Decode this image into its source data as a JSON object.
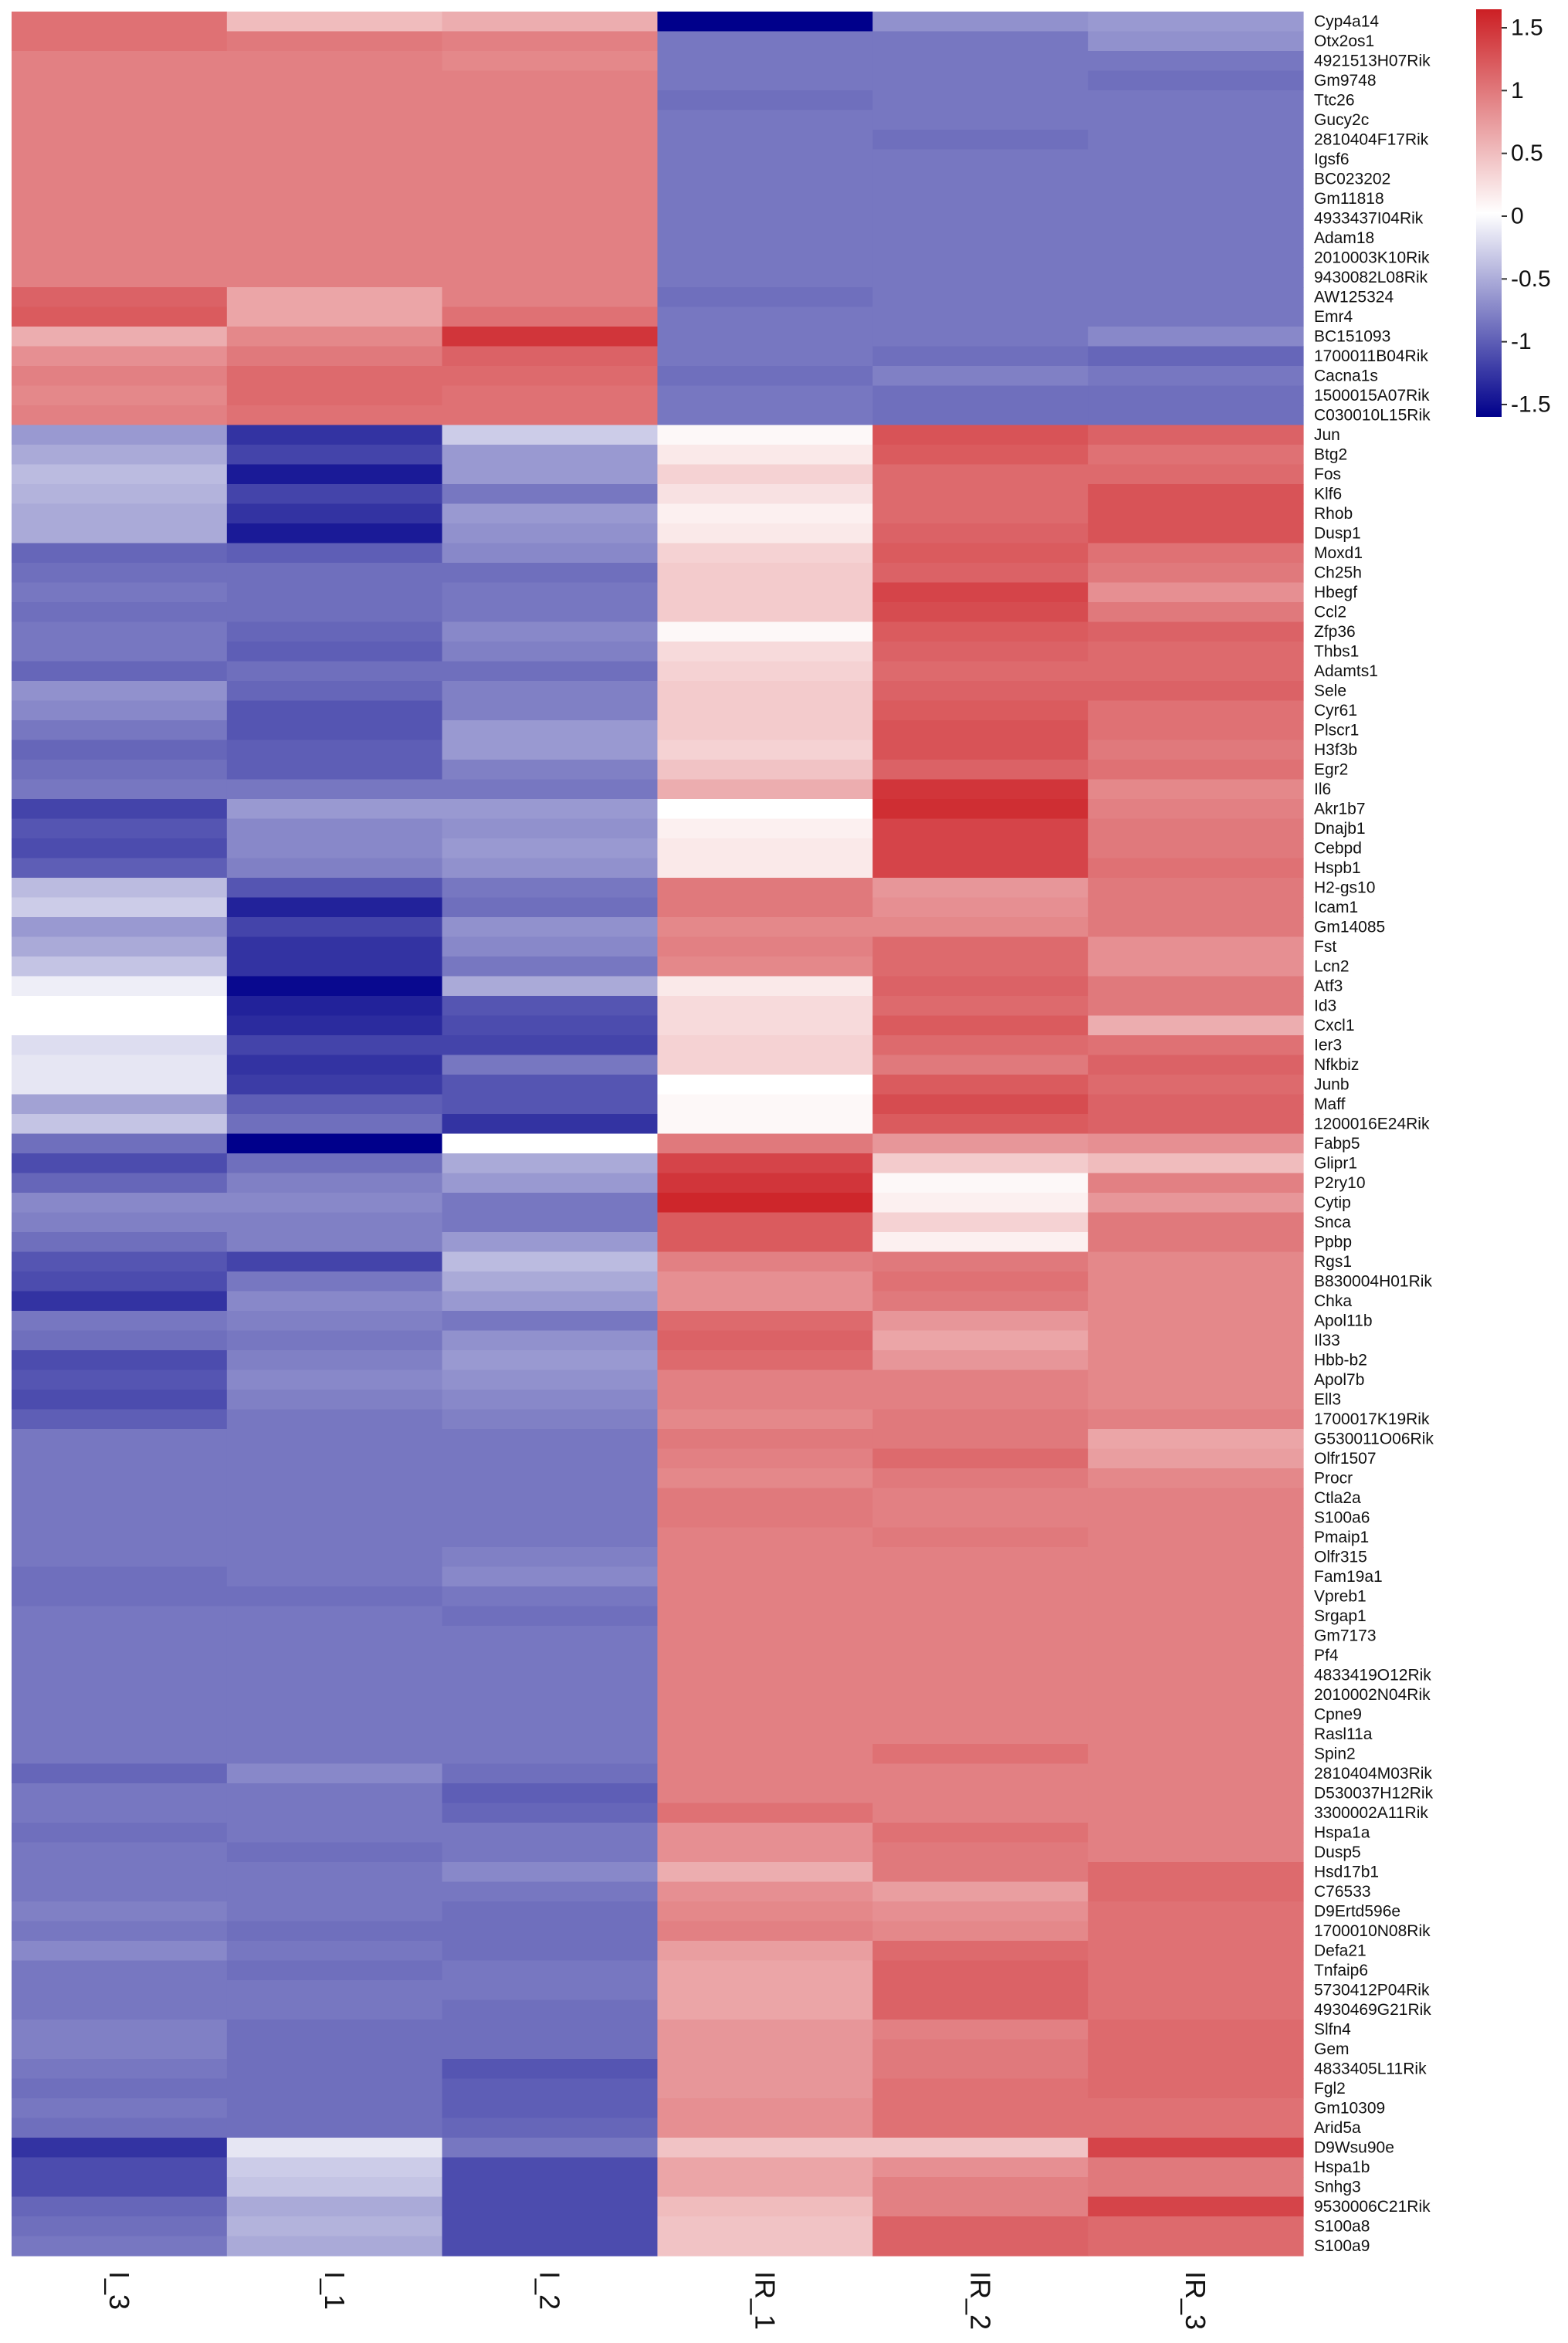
{
  "chart_data": {
    "type": "heatmap",
    "title": "",
    "xlabel": "",
    "ylabel": "",
    "columns": [
      "I_3",
      "I_1",
      "I_2",
      "IR_1",
      "IR_2",
      "IR_3"
    ],
    "rows": [
      {
        "gene": "Cyp4a14",
        "values": [
          0.95,
          0.45,
          0.55,
          -1.5,
          -0.65,
          -0.6
        ]
      },
      {
        "gene": "Otx2os1",
        "values": [
          0.95,
          0.9,
          0.85,
          -0.8,
          -0.8,
          -0.65
        ]
      },
      {
        "gene": "4921513H07Rik",
        "values": [
          0.85,
          0.85,
          0.8,
          -0.8,
          -0.8,
          -0.8
        ]
      },
      {
        "gene": "Gm9748",
        "values": [
          0.85,
          0.85,
          0.85,
          -0.8,
          -0.8,
          -0.85
        ]
      },
      {
        "gene": "Ttc26",
        "values": [
          0.85,
          0.85,
          0.85,
          -0.85,
          -0.8,
          -0.8
        ]
      },
      {
        "gene": "Gucy2c",
        "values": [
          0.85,
          0.85,
          0.85,
          -0.8,
          -0.8,
          -0.8
        ]
      },
      {
        "gene": "2810404F17Rik",
        "values": [
          0.85,
          0.85,
          0.85,
          -0.8,
          -0.85,
          -0.8
        ]
      },
      {
        "gene": "Igsf6",
        "values": [
          0.85,
          0.85,
          0.85,
          -0.8,
          -0.8,
          -0.8
        ]
      },
      {
        "gene": "BC023202",
        "values": [
          0.85,
          0.85,
          0.85,
          -0.8,
          -0.8,
          -0.8
        ]
      },
      {
        "gene": "Gm11818",
        "values": [
          0.85,
          0.85,
          0.85,
          -0.8,
          -0.8,
          -0.8
        ]
      },
      {
        "gene": "4933437I04Rik",
        "values": [
          0.85,
          0.85,
          0.85,
          -0.8,
          -0.8,
          -0.8
        ]
      },
      {
        "gene": "Adam18",
        "values": [
          0.85,
          0.85,
          0.85,
          -0.8,
          -0.8,
          -0.8
        ]
      },
      {
        "gene": "2010003K10Rik",
        "values": [
          0.85,
          0.85,
          0.85,
          -0.8,
          -0.8,
          -0.8
        ]
      },
      {
        "gene": "9430082L08Rik",
        "values": [
          0.85,
          0.85,
          0.85,
          -0.8,
          -0.8,
          -0.8
        ]
      },
      {
        "gene": "AW125324",
        "values": [
          1.05,
          0.6,
          0.85,
          -0.85,
          -0.8,
          -0.8
        ]
      },
      {
        "gene": "Emr4",
        "values": [
          1.1,
          0.6,
          0.95,
          -0.8,
          -0.8,
          -0.8
        ]
      },
      {
        "gene": "BC151093",
        "values": [
          0.55,
          0.8,
          1.35,
          -0.8,
          -0.8,
          -0.7
        ]
      },
      {
        "gene": "1700011B04Rik",
        "values": [
          0.75,
          0.9,
          1.05,
          -0.8,
          -0.85,
          -0.9
        ]
      },
      {
        "gene": "Cacna1s",
        "values": [
          0.85,
          1.0,
          1.0,
          -0.85,
          -0.75,
          -0.8
        ]
      },
      {
        "gene": "1500015A07Rik",
        "values": [
          0.8,
          1.0,
          0.95,
          -0.8,
          -0.85,
          -0.85
        ]
      },
      {
        "gene": "C030010L15Rik",
        "values": [
          0.85,
          0.95,
          0.95,
          -0.8,
          -0.85,
          -0.85
        ]
      },
      {
        "gene": "Jun",
        "values": [
          -0.6,
          -1.2,
          -0.3,
          0.05,
          1.15,
          1.05
        ]
      },
      {
        "gene": "Btg2",
        "values": [
          -0.5,
          -1.1,
          -0.6,
          0.15,
          1.1,
          0.95
        ]
      },
      {
        "gene": "Fos",
        "values": [
          -0.4,
          -1.35,
          -0.6,
          0.3,
          1.0,
          1.0
        ]
      },
      {
        "gene": "Klf6",
        "values": [
          -0.45,
          -1.1,
          -0.8,
          0.2,
          1.0,
          1.15
        ]
      },
      {
        "gene": "Rhob",
        "values": [
          -0.5,
          -1.2,
          -0.6,
          0.1,
          1.0,
          1.15
        ]
      },
      {
        "gene": "Dusp1",
        "values": [
          -0.5,
          -1.35,
          -0.65,
          0.15,
          1.05,
          1.15
        ]
      },
      {
        "gene": "Moxd1",
        "values": [
          -0.9,
          -0.95,
          -0.7,
          0.3,
          1.1,
          0.95
        ]
      },
      {
        "gene": "Ch25h",
        "values": [
          -0.85,
          -0.85,
          -0.85,
          0.35,
          1.05,
          0.9
        ]
      },
      {
        "gene": "Hbegf",
        "values": [
          -0.8,
          -0.85,
          -0.8,
          0.35,
          1.25,
          0.75
        ]
      },
      {
        "gene": "Ccl2",
        "values": [
          -0.85,
          -0.85,
          -0.8,
          0.35,
          1.2,
          0.9
        ]
      },
      {
        "gene": "Zfp36",
        "values": [
          -0.8,
          -0.9,
          -0.7,
          0.05,
          1.1,
          1.05
        ]
      },
      {
        "gene": "Thbs1",
        "values": [
          -0.8,
          -0.95,
          -0.75,
          0.25,
          1.05,
          1.0
        ]
      },
      {
        "gene": "Adamts1",
        "values": [
          -0.9,
          -0.85,
          -0.85,
          0.3,
          1.0,
          1.0
        ]
      },
      {
        "gene": "Sele",
        "values": [
          -0.65,
          -0.9,
          -0.75,
          0.35,
          1.05,
          1.05
        ]
      },
      {
        "gene": "Cyr61",
        "values": [
          -0.7,
          -1.0,
          -0.75,
          0.35,
          1.1,
          0.95
        ]
      },
      {
        "gene": "Plscr1",
        "values": [
          -0.8,
          -1.0,
          -0.6,
          0.35,
          1.15,
          0.95
        ]
      },
      {
        "gene": "H3f3b",
        "values": [
          -0.9,
          -0.95,
          -0.6,
          0.3,
          1.15,
          0.9
        ]
      },
      {
        "gene": "Egr2",
        "values": [
          -0.85,
          -0.95,
          -0.75,
          0.4,
          1.05,
          0.95
        ]
      },
      {
        "gene": "Il6",
        "values": [
          -0.8,
          -0.8,
          -0.8,
          0.55,
          1.35,
          0.8
        ]
      },
      {
        "gene": "Akr1b7",
        "values": [
          -1.1,
          -0.6,
          -0.6,
          0.0,
          1.4,
          0.85
        ]
      },
      {
        "gene": "Dnajb1",
        "values": [
          -1.0,
          -0.7,
          -0.65,
          0.1,
          1.25,
          0.9
        ]
      },
      {
        "gene": "Cebpd",
        "values": [
          -1.05,
          -0.7,
          -0.6,
          0.15,
          1.25,
          0.9
        ]
      },
      {
        "gene": "Hspb1",
        "values": [
          -0.95,
          -0.75,
          -0.65,
          0.15,
          1.25,
          0.95
        ]
      },
      {
        "gene": "H2-gs10",
        "values": [
          -0.4,
          -1.0,
          -0.8,
          0.9,
          0.7,
          0.9
        ]
      },
      {
        "gene": "Icam1",
        "values": [
          -0.3,
          -1.3,
          -0.85,
          0.9,
          0.75,
          0.9
        ]
      },
      {
        "gene": "Gm14085",
        "values": [
          -0.6,
          -1.1,
          -0.65,
          0.8,
          0.8,
          0.9
        ]
      },
      {
        "gene": "Fst",
        "values": [
          -0.5,
          -1.2,
          -0.7,
          0.85,
          1.0,
          0.75
        ]
      },
      {
        "gene": "Lcn2",
        "values": [
          -0.35,
          -1.2,
          -0.8,
          0.8,
          1.0,
          0.75
        ]
      },
      {
        "gene": "Atf3",
        "values": [
          -0.1,
          -1.45,
          -0.5,
          0.15,
          1.05,
          0.9
        ]
      },
      {
        "gene": "Id3",
        "values": [
          0.0,
          -1.3,
          -1.0,
          0.25,
          1.0,
          0.9
        ]
      },
      {
        "gene": "Cxcl1",
        "values": [
          0.0,
          -1.25,
          -1.05,
          0.25,
          1.1,
          0.55
        ]
      },
      {
        "gene": "Ier3",
        "values": [
          -0.2,
          -1.1,
          -1.1,
          0.3,
          1.0,
          0.95
        ]
      },
      {
        "gene": "Nfkbiz",
        "values": [
          -0.15,
          -1.2,
          -0.8,
          0.3,
          0.9,
          1.05
        ]
      },
      {
        "gene": "Junb",
        "values": [
          -0.15,
          -1.15,
          -1.0,
          0.0,
          1.1,
          1.0
        ]
      },
      {
        "gene": "Maff",
        "values": [
          -0.55,
          -0.95,
          -1.0,
          0.05,
          1.2,
          1.05
        ]
      },
      {
        "gene": "1200016E24Rik",
        "values": [
          -0.35,
          -0.85,
          -1.2,
          0.05,
          1.1,
          1.05
        ]
      },
      {
        "gene": "Fabp5",
        "values": [
          -0.85,
          -1.5,
          0.0,
          0.9,
          0.7,
          0.75
        ]
      },
      {
        "gene": "Glipr1",
        "values": [
          -1.05,
          -0.85,
          -0.5,
          1.25,
          0.35,
          0.45
        ]
      },
      {
        "gene": "P2ry10",
        "values": [
          -0.9,
          -0.75,
          -0.6,
          1.35,
          0.05,
          0.85
        ]
      },
      {
        "gene": "Cytip",
        "values": [
          -0.7,
          -0.7,
          -0.8,
          1.45,
          0.1,
          0.7
        ]
      },
      {
        "gene": "Snca",
        "values": [
          -0.75,
          -0.75,
          -0.8,
          1.1,
          0.3,
          0.9
        ]
      },
      {
        "gene": "Ppbp",
        "values": [
          -0.85,
          -0.75,
          -0.6,
          1.1,
          0.1,
          0.9
        ]
      },
      {
        "gene": "Rgs1",
        "values": [
          -1.0,
          -1.1,
          -0.4,
          0.85,
          0.9,
          0.8
        ]
      },
      {
        "gene": "B830004H01Rik",
        "values": [
          -1.05,
          -0.8,
          -0.5,
          0.75,
          0.95,
          0.8
        ]
      },
      {
        "gene": "Chka",
        "values": [
          -1.2,
          -0.7,
          -0.6,
          0.75,
          0.9,
          0.8
        ]
      },
      {
        "gene": "Apol11b",
        "values": [
          -0.8,
          -0.75,
          -0.8,
          1.0,
          0.7,
          0.8
        ]
      },
      {
        "gene": "Il33",
        "values": [
          -0.85,
          -0.8,
          -0.65,
          1.05,
          0.6,
          0.8
        ]
      },
      {
        "gene": "Hbb-b2",
        "values": [
          -1.05,
          -0.75,
          -0.6,
          1.0,
          0.7,
          0.8
        ]
      },
      {
        "gene": "Apol7b",
        "values": [
          -1.0,
          -0.7,
          -0.65,
          0.85,
          0.85,
          0.8
        ]
      },
      {
        "gene": "Ell3",
        "values": [
          -1.05,
          -0.75,
          -0.7,
          0.85,
          0.85,
          0.8
        ]
      },
      {
        "gene": "1700017K19Rik",
        "values": [
          -0.95,
          -0.8,
          -0.75,
          0.8,
          0.9,
          0.85
        ]
      },
      {
        "gene": "G530011O06Rik",
        "values": [
          -0.8,
          -0.8,
          -0.8,
          0.9,
          0.9,
          0.6
        ]
      },
      {
        "gene": "Olfr1507",
        "values": [
          -0.8,
          -0.8,
          -0.8,
          0.85,
          1.0,
          0.65
        ]
      },
      {
        "gene": "Procr",
        "values": [
          -0.8,
          -0.8,
          -0.8,
          0.8,
          0.9,
          0.8
        ]
      },
      {
        "gene": "Ctla2a",
        "values": [
          -0.8,
          -0.8,
          -0.8,
          0.9,
          0.85,
          0.85
        ]
      },
      {
        "gene": "S100a6",
        "values": [
          -0.8,
          -0.8,
          -0.8,
          0.9,
          0.85,
          0.85
        ]
      },
      {
        "gene": "Pmaip1",
        "values": [
          -0.8,
          -0.8,
          -0.8,
          0.85,
          0.9,
          0.85
        ]
      },
      {
        "gene": "Olfr315",
        "values": [
          -0.8,
          -0.8,
          -0.75,
          0.85,
          0.85,
          0.85
        ]
      },
      {
        "gene": "Fam19a1",
        "values": [
          -0.85,
          -0.8,
          -0.7,
          0.85,
          0.85,
          0.85
        ]
      },
      {
        "gene": "Vpreb1",
        "values": [
          -0.85,
          -0.85,
          -0.8,
          0.85,
          0.85,
          0.85
        ]
      },
      {
        "gene": "Srgap1",
        "values": [
          -0.8,
          -0.8,
          -0.85,
          0.85,
          0.85,
          0.85
        ]
      },
      {
        "gene": "Gm7173",
        "values": [
          -0.8,
          -0.8,
          -0.8,
          0.85,
          0.85,
          0.85
        ]
      },
      {
        "gene": "Pf4",
        "values": [
          -0.8,
          -0.8,
          -0.8,
          0.85,
          0.85,
          0.85
        ]
      },
      {
        "gene": "4833419O12Rik",
        "values": [
          -0.8,
          -0.8,
          -0.8,
          0.85,
          0.85,
          0.85
        ]
      },
      {
        "gene": "2010002N04Rik",
        "values": [
          -0.8,
          -0.8,
          -0.8,
          0.85,
          0.85,
          0.85
        ]
      },
      {
        "gene": "Cpne9",
        "values": [
          -0.8,
          -0.8,
          -0.8,
          0.85,
          0.85,
          0.85
        ]
      },
      {
        "gene": "Rasl11a",
        "values": [
          -0.8,
          -0.8,
          -0.8,
          0.85,
          0.85,
          0.85
        ]
      },
      {
        "gene": "Spin2",
        "values": [
          -0.8,
          -0.8,
          -0.8,
          0.85,
          0.95,
          0.85
        ]
      },
      {
        "gene": "2810404M03Rik",
        "values": [
          -0.9,
          -0.7,
          -0.85,
          0.85,
          0.85,
          0.85
        ]
      },
      {
        "gene": "D530037H12Rik",
        "values": [
          -0.8,
          -0.8,
          -0.95,
          0.85,
          0.85,
          0.85
        ]
      },
      {
        "gene": "3300002A11Rik",
        "values": [
          -0.8,
          -0.8,
          -0.9,
          0.95,
          0.85,
          0.85
        ]
      },
      {
        "gene": "Hspa1a",
        "values": [
          -0.85,
          -0.8,
          -0.8,
          0.75,
          0.95,
          0.85
        ]
      },
      {
        "gene": "Dusp5",
        "values": [
          -0.8,
          -0.85,
          -0.8,
          0.75,
          0.9,
          0.85
        ]
      },
      {
        "gene": "Hsd17b1",
        "values": [
          -0.8,
          -0.8,
          -0.7,
          0.55,
          0.9,
          1.0
        ]
      },
      {
        "gene": "C76533",
        "values": [
          -0.8,
          -0.8,
          -0.8,
          0.75,
          0.65,
          1.0
        ]
      },
      {
        "gene": "D9Ertd596e",
        "values": [
          -0.75,
          -0.8,
          -0.85,
          0.8,
          0.75,
          0.95
        ]
      },
      {
        "gene": "1700010N08Rik",
        "values": [
          -0.8,
          -0.85,
          -0.85,
          0.85,
          0.8,
          0.95
        ]
      },
      {
        "gene": "Defa21",
        "values": [
          -0.7,
          -0.8,
          -0.85,
          0.65,
          1.0,
          0.95
        ]
      },
      {
        "gene": "Tnfaip6",
        "values": [
          -0.8,
          -0.85,
          -0.8,
          0.6,
          1.05,
          0.95
        ]
      },
      {
        "gene": "5730412P04Rik",
        "values": [
          -0.8,
          -0.8,
          -0.8,
          0.6,
          1.05,
          0.95
        ]
      },
      {
        "gene": "4930469G21Rik",
        "values": [
          -0.8,
          -0.8,
          -0.85,
          0.6,
          1.05,
          0.95
        ]
      },
      {
        "gene": "Slfn4",
        "values": [
          -0.75,
          -0.85,
          -0.85,
          0.7,
          0.85,
          1.0
        ]
      },
      {
        "gene": "Gem",
        "values": [
          -0.75,
          -0.85,
          -0.85,
          0.7,
          0.9,
          1.0
        ]
      },
      {
        "gene": "4833405L11Rik",
        "values": [
          -0.8,
          -0.85,
          -1.0,
          0.7,
          0.9,
          1.0
        ]
      },
      {
        "gene": "Fgl2",
        "values": [
          -0.85,
          -0.85,
          -0.95,
          0.7,
          0.95,
          1.0
        ]
      },
      {
        "gene": "Gm10309",
        "values": [
          -0.8,
          -0.85,
          -0.95,
          0.75,
          0.95,
          0.95
        ]
      },
      {
        "gene": "Arid5a",
        "values": [
          -0.85,
          -0.85,
          -0.9,
          0.75,
          0.95,
          0.95
        ]
      },
      {
        "gene": "D9Wsu90e",
        "values": [
          -1.2,
          -0.15,
          -0.8,
          0.4,
          0.4,
          1.25
        ]
      },
      {
        "gene": "Hspa1b",
        "values": [
          -1.05,
          -0.3,
          -1.05,
          0.6,
          0.75,
          0.9
        ]
      },
      {
        "gene": "Snhg3",
        "values": [
          -1.05,
          -0.35,
          -1.05,
          0.6,
          0.85,
          0.9
        ]
      },
      {
        "gene": "9530006C21Rik",
        "values": [
          -0.9,
          -0.5,
          -1.05,
          0.45,
          0.85,
          1.25
        ]
      },
      {
        "gene": "S100a8",
        "values": [
          -0.85,
          -0.45,
          -1.05,
          0.4,
          1.05,
          1.0
        ]
      },
      {
        "gene": "S100a9",
        "values": [
          -0.8,
          -0.5,
          -1.05,
          0.4,
          1.05,
          1.0
        ]
      }
    ],
    "color_scale": {
      "min": -1.5,
      "max": 1.5,
      "low_color": "#00008b",
      "mid_color": "#ffffff",
      "high_color": "#cc1f24",
      "ticks": [
        "1.5",
        "1",
        "0.5",
        "0",
        "-0.5",
        "-1",
        "-1.5"
      ]
    },
    "grid": false,
    "legend_position": "top-right"
  }
}
